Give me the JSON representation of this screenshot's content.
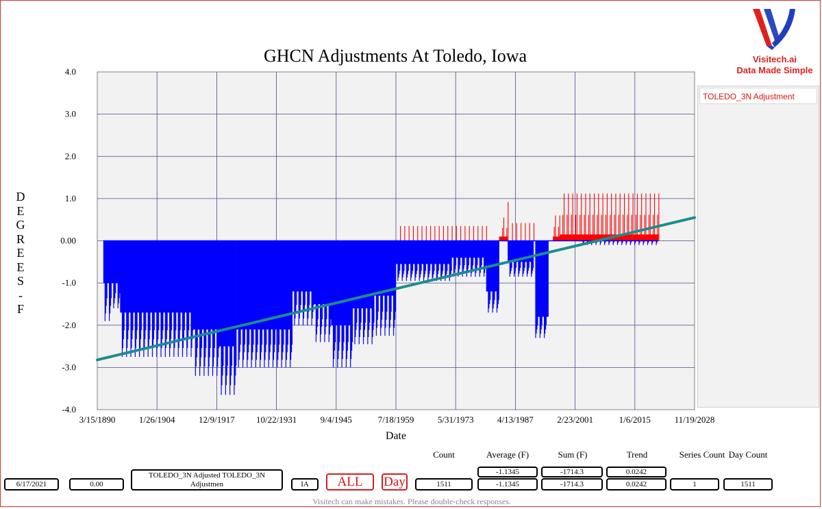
{
  "chart_data": {
    "type": "bar",
    "title": "GHCN Adjustments At Toledo, Iowa",
    "xlabel": "Date",
    "ylabel": "DEGREES - F",
    "ylim": [
      -4.0,
      4.0
    ],
    "yticks": [
      "4.0",
      "3.0",
      "2.0",
      "1.0",
      "0.00",
      "-1.0",
      "-2.0",
      "-3.0",
      "-4.0"
    ],
    "xlim": [
      "3/15/1890",
      "11/19/2028"
    ],
    "xticks": [
      "3/15/1890",
      "1/26/1904",
      "12/9/1917",
      "10/22/1931",
      "9/4/1945",
      "7/18/1959",
      "5/31/1973",
      "4/13/1987",
      "2/23/2001",
      "1/6/2015",
      "11/19/2028"
    ],
    "grid": true,
    "legend_position": "right",
    "series": [
      {
        "name": "TOLEDO_3N Adjustment",
        "color_positive": "#ff0000",
        "color_negative": "#0000ff",
        "segments": [
          {
            "from": 1891.6,
            "to": 1893.5,
            "base": -1.0,
            "spike": -1.9
          },
          {
            "from": 1893.5,
            "to": 1895.5,
            "base": -1.0,
            "spike": -1.6
          },
          {
            "from": 1895.5,
            "to": 1900.5,
            "base": -1.7,
            "spike": -2.75
          },
          {
            "from": 1900.5,
            "to": 1912.5,
            "base": -1.7,
            "spike": -2.75
          },
          {
            "from": 1912.5,
            "to": 1918.5,
            "base": -2.1,
            "spike": -3.2
          },
          {
            "from": 1918.5,
            "to": 1922.5,
            "base": -2.5,
            "spike": -3.65
          },
          {
            "from": 1922.5,
            "to": 1935.5,
            "base": -2.1,
            "spike": -3.0
          },
          {
            "from": 1935.5,
            "to": 1940.5,
            "base": -1.2,
            "spike": -2.0
          },
          {
            "from": 1940.5,
            "to": 1944.5,
            "base": -1.5,
            "spike": -2.4
          },
          {
            "from": 1944.5,
            "to": 1949.5,
            "base": -2.0,
            "spike": -3.0
          },
          {
            "from": 1949.5,
            "to": 1954.5,
            "base": -1.6,
            "spike": -2.45
          },
          {
            "from": 1954.5,
            "to": 1959.5,
            "base": -1.3,
            "spike": -2.25
          },
          {
            "from": 1959.5,
            "to": 1972.5,
            "base": -0.55,
            "spike": -0.95,
            "up": 0.35
          },
          {
            "from": 1972.5,
            "to": 1980.5,
            "base": -0.4,
            "spike": -0.85,
            "up": 0.35
          },
          {
            "from": 1980.5,
            "to": 1983.5,
            "base": -1.2,
            "spike": -1.7
          },
          {
            "from": 1983.5,
            "to": 1985.5,
            "base": 0.1,
            "spike": 0.0,
            "up": 0.55,
            "upmax": 0.92
          },
          {
            "from": 1985.5,
            "to": 1991.5,
            "base": -0.5,
            "spike": -0.85,
            "up": 0.42
          },
          {
            "from": 1992.0,
            "to": 1995.0,
            "base": -1.8,
            "spike": -2.3
          },
          {
            "from": 1996.0,
            "to": 1997.5,
            "base": 0.1,
            "spike": 0.0,
            "up": 0.6
          },
          {
            "from": 1997.5,
            "to": 2002.5,
            "base": 0.15,
            "spike": 0.0,
            "up": 1.12
          },
          {
            "from": 2002.5,
            "to": 2014.5,
            "base": 0.15,
            "spike": -0.1,
            "up": 1.12
          },
          {
            "from": 2014.5,
            "to": 2020.5,
            "base": 0.15,
            "spike": -0.1,
            "up": 1.12
          }
        ]
      }
    ],
    "trend_line": {
      "color": "#1e8c8c",
      "x": [
        1890.2,
        2028.9
      ],
      "y": [
        -2.82,
        0.55
      ]
    }
  },
  "legend": {
    "items": [
      "TOLEDO_3N Adjustment"
    ]
  },
  "logo": {
    "name": "Visitech.ai",
    "tagline": "Data Made Simple"
  },
  "stats": {
    "headers": {
      "count": "Count",
      "average": "Average (F)",
      "sum": "Sum (F)",
      "trend": "Trend",
      "series_count": "Series Count",
      "day_count": "Day Count"
    },
    "row_top": {
      "average": "-1.1345",
      "sum": "-1714.3",
      "trend": "0.0242"
    },
    "row_bottom": {
      "date": "6/17/2021",
      "value": "0.00",
      "series_name": "TOLEDO_3N Adjusted TOLEDO_3N Adjustmen",
      "state": "IA",
      "all_button": "ALL",
      "day_button": "Day",
      "count": "1511",
      "average": "-1.1345",
      "sum": "-1714.3",
      "trend": "0.0242",
      "series_count": "1",
      "day_count": "1511"
    }
  },
  "footer": "Visitech can make mistakes. Please double-check responses.",
  "colors": {
    "frame": "#d93030",
    "plot_bg": "#f2f2f2",
    "grid": "#4a4a8a",
    "accent": "#e02020"
  }
}
